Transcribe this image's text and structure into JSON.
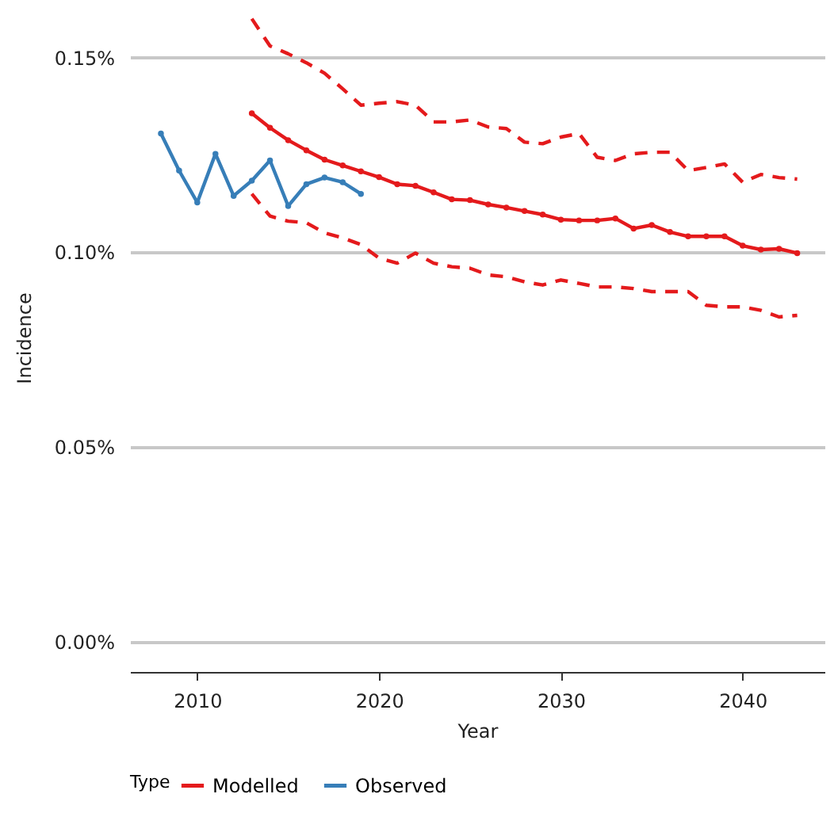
{
  "chart_data": {
    "type": "line",
    "xlabel": "Year",
    "ylabel": "Incidence",
    "legend_title": "Type",
    "legend": "bottom",
    "grid": "y",
    "xlim": [
      2006.3,
      2044.5
    ],
    "xticks": [
      2010,
      2020,
      2030,
      2040
    ],
    "ylim": [
      -0.0078,
      0.164
    ],
    "yticks": [
      {
        "value": 0,
        "label": "0.00%"
      },
      {
        "value": 0.05,
        "label": "0.05%"
      },
      {
        "value": 0.1,
        "label": "0.10%"
      },
      {
        "value": 0.15,
        "label": "0.15%"
      }
    ],
    "series": [
      {
        "name": "Modelled",
        "color": "#e41a1c",
        "marker": "circle",
        "line_style": "solid",
        "x": [
          2013,
          2014,
          2015,
          2016,
          2017,
          2018,
          2019,
          2020,
          2021,
          2022,
          2023,
          2024,
          2025,
          2026,
          2027,
          2028,
          2029,
          2030,
          2031,
          2032,
          2033,
          2034,
          2035,
          2036,
          2037,
          2038,
          2039,
          2040,
          2041,
          2042,
          2043
        ],
        "values": [
          0.1357,
          0.132,
          0.1288,
          0.1262,
          0.1238,
          0.1223,
          0.1208,
          0.1193,
          0.1175,
          0.1171,
          0.1154,
          0.1136,
          0.1134,
          0.1123,
          0.1115,
          0.1106,
          0.1097,
          0.1084,
          0.1082,
          0.1082,
          0.1087,
          0.1061,
          0.107,
          0.1052,
          0.1041,
          0.1041,
          0.1041,
          0.1017,
          0.1007,
          0.1009,
          0.0998
        ]
      },
      {
        "name": "Observed",
        "color": "#377eb8",
        "marker": "circle",
        "line_style": "solid",
        "x": [
          2008,
          2009,
          2010,
          2011,
          2012,
          2013,
          2014,
          2015,
          2016,
          2017,
          2018,
          2019
        ],
        "values": [
          0.1305,
          0.121,
          0.1128,
          0.1253,
          0.1145,
          0.1184,
          0.1236,
          0.1119,
          0.1175,
          0.1192,
          0.118,
          0.115
        ]
      },
      {
        "color": "#e41a1c",
        "marker": "none",
        "line_style": "dashed",
        "x": [
          2013,
          2014,
          2015,
          2016,
          2017,
          2018,
          2019,
          2020,
          2021,
          2022,
          2023,
          2024,
          2025,
          2026,
          2027,
          2028,
          2029,
          2030,
          2031,
          2032,
          2033,
          2034,
          2035,
          2036,
          2037,
          2038,
          2039,
          2040,
          2041,
          2042,
          2043
        ],
        "values": [
          0.16,
          0.153,
          0.151,
          0.1487,
          0.146,
          0.142,
          0.1378,
          0.1383,
          0.1387,
          0.1378,
          0.1335,
          0.1335,
          0.134,
          0.1322,
          0.1318,
          0.1283,
          0.1279,
          0.1296,
          0.1305,
          0.1244,
          0.1236,
          0.1253,
          0.1257,
          0.1257,
          0.121,
          0.1218,
          0.1227,
          0.118,
          0.12,
          0.1192,
          0.1188
        ]
      },
      {
        "color": "#e41a1c",
        "marker": "none",
        "line_style": "dashed",
        "x": [
          2013,
          2014,
          2015,
          2016,
          2017,
          2018,
          2019,
          2020,
          2021,
          2022,
          2023,
          2024,
          2025,
          2026,
          2027,
          2028,
          2029,
          2030,
          2031,
          2032,
          2033,
          2034,
          2035,
          2036,
          2037,
          2038,
          2039,
          2040,
          2041,
          2042,
          2043
        ],
        "values": [
          0.115,
          0.1093,
          0.108,
          0.1076,
          0.105,
          0.1037,
          0.102,
          0.0985,
          0.0972,
          0.0998,
          0.0972,
          0.0963,
          0.0959,
          0.0942,
          0.0937,
          0.0924,
          0.0916,
          0.0929,
          0.092,
          0.0911,
          0.0911,
          0.0907,
          0.0899,
          0.0899,
          0.0899,
          0.0864,
          0.086,
          0.086,
          0.0851,
          0.0834,
          0.0838
        ]
      }
    ]
  }
}
